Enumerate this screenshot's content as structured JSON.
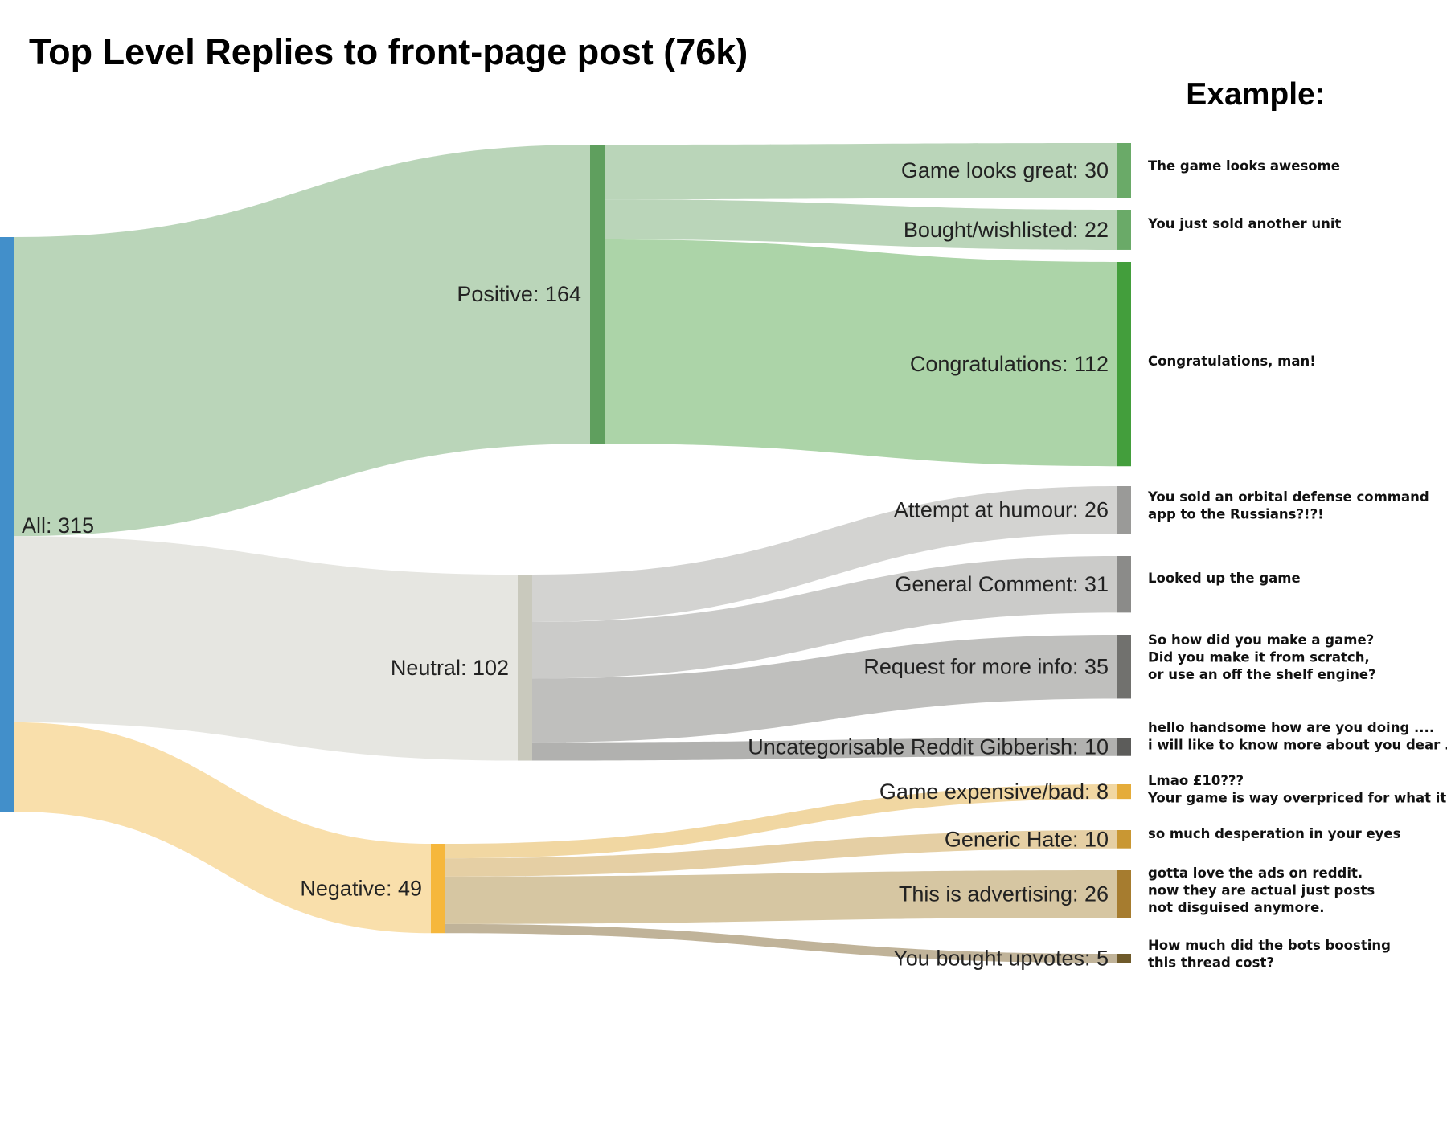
{
  "title": "Top Level Replies to front-page post (76k)",
  "examples_heading": "Example:",
  "nodes": [
    {
      "id": "all",
      "label": "All: 315",
      "value": 315,
      "color": "#428fca"
    },
    {
      "id": "positive",
      "label": "Positive: 164",
      "value": 164,
      "color": "#5f9f5e"
    },
    {
      "id": "neutral",
      "label": "Neutral: 102",
      "value": 102,
      "color": "#c9c9bd"
    },
    {
      "id": "negative",
      "label": "Negative: 49",
      "value": 49,
      "color": "#f6b73c"
    },
    {
      "id": "game_looks_great",
      "label": "Game looks great: 30",
      "value": 30,
      "color": "#6aaa68",
      "example": [
        "The game looks awesome"
      ]
    },
    {
      "id": "bought_wishlisted",
      "label": "Bought/wishlisted: 22",
      "value": 22,
      "color": "#6aaa68",
      "example": [
        "You just sold another unit"
      ]
    },
    {
      "id": "congratulations",
      "label": "Congratulations: 112",
      "value": 112,
      "color": "#439e3c",
      "example": [
        "Congratulations, man!"
      ]
    },
    {
      "id": "attempt_humour",
      "label": "Attempt at humour: 26",
      "value": 26,
      "color": "#9a9a98",
      "example": [
        "You sold an orbital defense command",
        "app to the Russians?!?!"
      ]
    },
    {
      "id": "general_comment",
      "label": "General Comment: 31",
      "value": 31,
      "color": "#8b8b89",
      "example": [
        "Looked up the game"
      ]
    },
    {
      "id": "request_info",
      "label": "Request for more info: 35",
      "value": 35,
      "color": "#71716e",
      "example": [
        "So how did you make a game?",
        "Did you make it from scratch,",
        "or use an off the shelf engine?"
      ]
    },
    {
      "id": "gibberish",
      "label": "Uncategorisable Reddit Gibberish: 10",
      "value": 10,
      "color": "#5c5c5a",
      "example": [
        "hello handsome how are you doing ....",
        "i will like to know more about you dear ..."
      ]
    },
    {
      "id": "game_expensive",
      "label": "Game expensive/bad: 8",
      "value": 8,
      "color": "#e5ac3a",
      "example": [
        "Lmao £10???",
        "Your game is way overpriced for what it is"
      ]
    },
    {
      "id": "generic_hate",
      "label": "Generic Hate: 10",
      "value": 10,
      "color": "#c99733",
      "example": [
        "so much desperation in your eyes"
      ]
    },
    {
      "id": "advertising",
      "label": "This is advertising: 26",
      "value": 26,
      "color": "#a67c2f",
      "example": [
        "gotta love the ads on reddit.",
        "now they are actual just posts",
        "not disguised anymore."
      ]
    },
    {
      "id": "bought_upvotes",
      "label": "You bought upvotes: 5",
      "value": 5,
      "color": "#6f5a2a",
      "example": [
        "How much did the bots boosting",
        "this thread cost?"
      ]
    }
  ],
  "links": [
    {
      "source": "all",
      "target": "positive",
      "value": 164,
      "color": "#bad5b9"
    },
    {
      "source": "all",
      "target": "neutral",
      "value": 102,
      "color": "#e6e6e1"
    },
    {
      "source": "all",
      "target": "negative",
      "value": 49,
      "color": "#f9dfab"
    },
    {
      "source": "positive",
      "target": "game_looks_great",
      "value": 30,
      "color": "#bad5b9"
    },
    {
      "source": "positive",
      "target": "bought_wishlisted",
      "value": 22,
      "color": "#bad5b9"
    },
    {
      "source": "positive",
      "target": "congratulations",
      "value": 112,
      "color": "#acd4a8"
    },
    {
      "source": "neutral",
      "target": "attempt_humour",
      "value": 26,
      "color": "#d3d3d1"
    },
    {
      "source": "neutral",
      "target": "general_comment",
      "value": 31,
      "color": "#cbcbc9"
    },
    {
      "source": "neutral",
      "target": "request_info",
      "value": 35,
      "color": "#bfbfbd"
    },
    {
      "source": "neutral",
      "target": "gibberish",
      "value": 10,
      "color": "#b1b1af"
    },
    {
      "source": "negative",
      "target": "game_expensive",
      "value": 8,
      "color": "#f1d7a2"
    },
    {
      "source": "negative",
      "target": "generic_hate",
      "value": 10,
      "color": "#e5cfa4"
    },
    {
      "source": "negative",
      "target": "advertising",
      "value": 26,
      "color": "#d6c6a2"
    },
    {
      "source": "negative",
      "target": "bought_upvotes",
      "value": 5,
      "color": "#c0b399"
    }
  ]
}
